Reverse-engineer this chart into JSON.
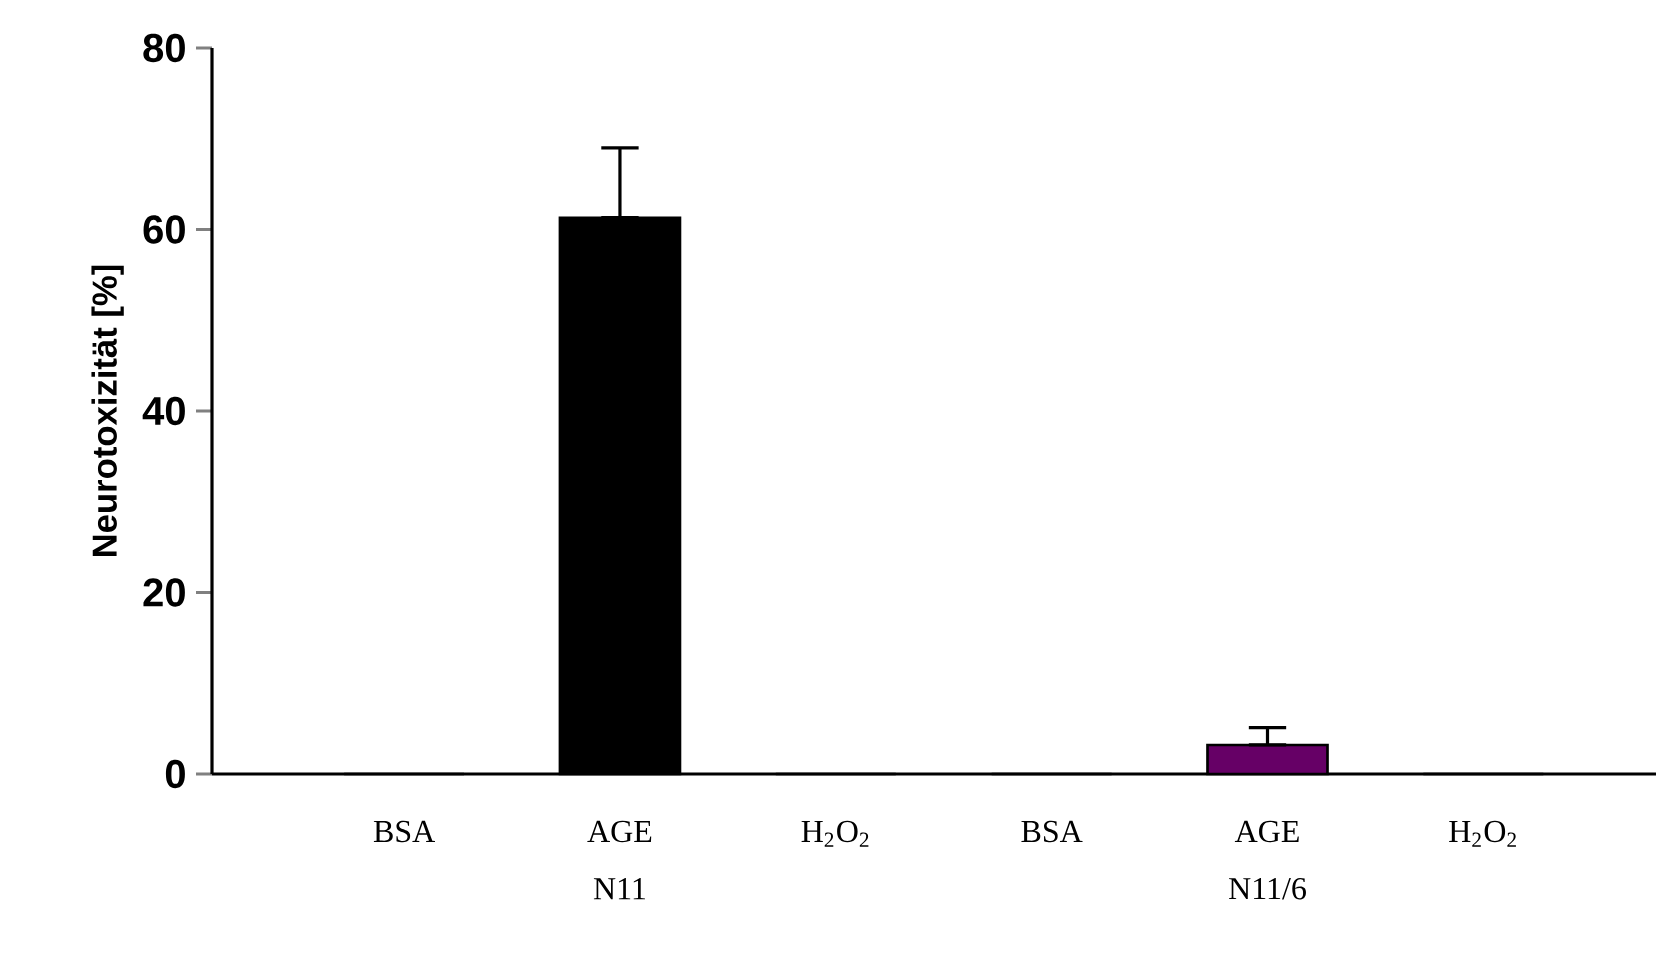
{
  "chart_data": {
    "type": "bar",
    "ylabel": "Neurotoxizität [%]",
    "categories": [
      "BSA",
      "AGE",
      "H$_{2}$O$_{2}$",
      "BSA",
      "AGE",
      "H$_{2}$O$_{2}$"
    ],
    "values": [
      0,
      61.3,
      0,
      0,
      3.2,
      0
    ],
    "colors": [
      "#000000",
      "#000000",
      "#000000",
      "#000000",
      "#660066",
      "#000000"
    ],
    "errors": [
      null,
      [
        61.3,
        69.0
      ],
      null,
      null,
      [
        3.2,
        5.1
      ],
      null
    ],
    "ylim": [
      0,
      80
    ],
    "yticks": [
      0,
      20,
      40,
      60,
      80
    ],
    "annotations": [
      "N11",
      "N11/6"
    ]
  }
}
